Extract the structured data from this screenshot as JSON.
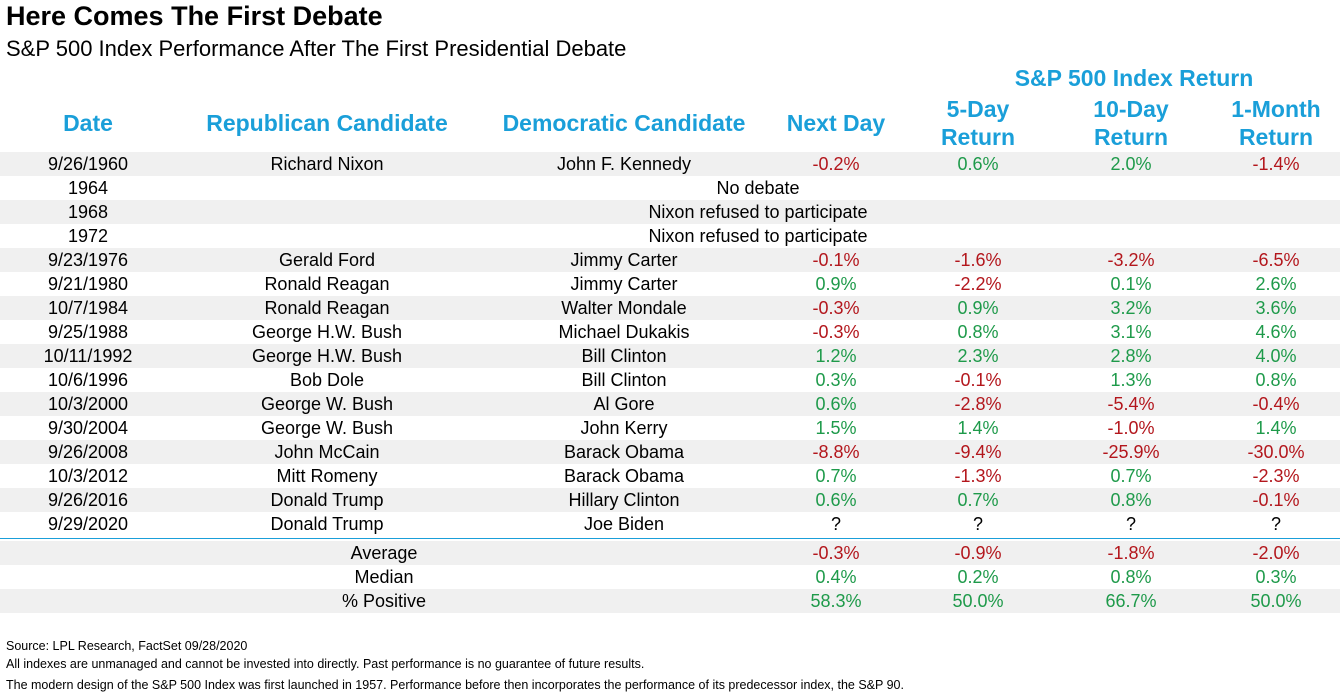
{
  "title": "Here Comes The First Debate",
  "subtitle": "S&P 500 Index Performance After The First Presidential Debate",
  "group_header": "S&P 500 Index Return",
  "headers": {
    "date": "Date",
    "republican": "Republican Candidate",
    "democratic": "Democratic Candidate",
    "next_day": "Next Day",
    "five_day_1": "5-Day",
    "five_day_2": "Return",
    "ten_day_1": "10-Day",
    "ten_day_2": "Return",
    "one_month_1": "1-Month",
    "one_month_2": "Return"
  },
  "rows": [
    {
      "date": "9/26/1960",
      "rep": "Richard Nixon",
      "dem": "John F. Kennedy",
      "nd": "-0.2%",
      "d5": "0.6%",
      "d10": "2.0%",
      "m1": "-1.4%"
    },
    {
      "date": "1964",
      "note": "No debate"
    },
    {
      "date": "1968",
      "note": "Nixon refused to participate"
    },
    {
      "date": "1972",
      "note": "Nixon refused to participate"
    },
    {
      "date": "9/23/1976",
      "rep": "Gerald Ford",
      "dem": "Jimmy Carter",
      "nd": "-0.1%",
      "d5": "-1.6%",
      "d10": "-3.2%",
      "m1": "-6.5%"
    },
    {
      "date": "9/21/1980",
      "rep": "Ronald Reagan",
      "dem": "Jimmy Carter",
      "nd": "0.9%",
      "d5": "-2.2%",
      "d10": "0.1%",
      "m1": "2.6%"
    },
    {
      "date": "10/7/1984",
      "rep": "Ronald Reagan",
      "dem": "Walter Mondale",
      "nd": "-0.3%",
      "d5": "0.9%",
      "d10": "3.2%",
      "m1": "3.6%"
    },
    {
      "date": "9/25/1988",
      "rep": "George H.W. Bush",
      "dem": "Michael Dukakis",
      "nd": "-0.3%",
      "d5": "0.8%",
      "d10": "3.1%",
      "m1": "4.6%"
    },
    {
      "date": "10/11/1992",
      "rep": "George H.W. Bush",
      "dem": "Bill Clinton",
      "nd": "1.2%",
      "d5": "2.3%",
      "d10": "2.8%",
      "m1": "4.0%"
    },
    {
      "date": "10/6/1996",
      "rep": "Bob Dole",
      "dem": "Bill Clinton",
      "nd": "0.3%",
      "d5": "-0.1%",
      "d10": "1.3%",
      "m1": "0.8%"
    },
    {
      "date": "10/3/2000",
      "rep": "George W. Bush",
      "dem": "Al Gore",
      "nd": "0.6%",
      "d5": "-2.8%",
      "d10": "-5.4%",
      "m1": "-0.4%"
    },
    {
      "date": "9/30/2004",
      "rep": "George W. Bush",
      "dem": "John Kerry",
      "nd": "1.5%",
      "d5": "1.4%",
      "d10": "-1.0%",
      "m1": "1.4%"
    },
    {
      "date": "9/26/2008",
      "rep": "John McCain",
      "dem": "Barack Obama",
      "nd": "-8.8%",
      "d5": "-9.4%",
      "d10": "-25.9%",
      "m1": "-30.0%"
    },
    {
      "date": "10/3/2012",
      "rep": "Mitt Romeny",
      "dem": "Barack Obama",
      "nd": "0.7%",
      "d5": "-1.3%",
      "d10": "0.7%",
      "m1": "-2.3%"
    },
    {
      "date": "9/26/2016",
      "rep": "Donald Trump",
      "dem": "Hillary Clinton",
      "nd": "0.6%",
      "d5": "0.7%",
      "d10": "0.8%",
      "m1": "-0.1%"
    },
    {
      "date": "9/29/2020",
      "rep": "Donald Trump",
      "dem": "Joe Biden",
      "nd": "?",
      "d5": "?",
      "d10": "?",
      "m1": "?"
    }
  ],
  "stats": [
    {
      "label": "Average",
      "nd": "-0.3%",
      "d5": "-0.9%",
      "d10": "-1.8%",
      "m1": "-2.0%"
    },
    {
      "label": "Median",
      "nd": "0.4%",
      "d5": "0.2%",
      "d10": "0.8%",
      "m1": "0.3%"
    },
    {
      "label": "% Positive",
      "nd": "58.3%",
      "d5": "50.0%",
      "d10": "66.7%",
      "m1": "50.0%"
    }
  ],
  "footnotes": [
    "Source: LPL Research, FactSet 09/28/2020",
    "All indexes are unmanaged and cannot be invested into directly. Past performance is no guarantee of future results.",
    "The modern design of the S&P 500 Index was first launched in 1957. Performance before then incorporates the performance of its predecessor index, the S&P 90."
  ],
  "colors": {
    "header": "#1a9fd9",
    "positive": "#1e9a4a",
    "negative": "#b3161c",
    "shade": "#f0f0f0"
  }
}
